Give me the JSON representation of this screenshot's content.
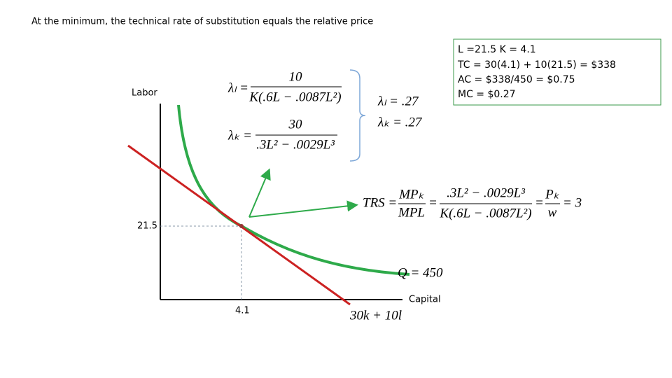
{
  "title": "At the minimum, the technical rate of substitution equals the relative price",
  "summary_box": {
    "lines": [
      "L =21.5 K = 4.1",
      "TC = 30(4.1) + 10(21.5) = $338",
      "AC = $338/450 = $0.75",
      "MC = $0.27"
    ]
  },
  "graph": {
    "y_label": "Labor",
    "x_label": "Capital",
    "y_tick": "21.5",
    "x_tick": "4.1",
    "isoquant_label": "Q = 450",
    "isocost_label": "30k + 10l"
  },
  "equations": {
    "lambda_l": {
      "lhs": "λₗ =",
      "numerator": "10",
      "denominator": "K(.6L − .0087L²)"
    },
    "lambda_k": {
      "lhs": "λₖ =",
      "numerator": "30",
      "denominator": ".3L² − .0029L³"
    },
    "lambda_l_value": "λₗ = .27",
    "lambda_k_value": "λₖ = .27",
    "trs": {
      "lhs": "TRS =",
      "ratio_numerator": "MPₖ",
      "ratio_denominator": "MPL",
      "eq1": "=",
      "numerator": ".3L² − .0029L³",
      "denominator": "K(.6L − .0087L²)",
      "eq2": "=",
      "price_numerator": "Pₖ",
      "price_denominator": "w",
      "result": "= 3"
    }
  }
}
